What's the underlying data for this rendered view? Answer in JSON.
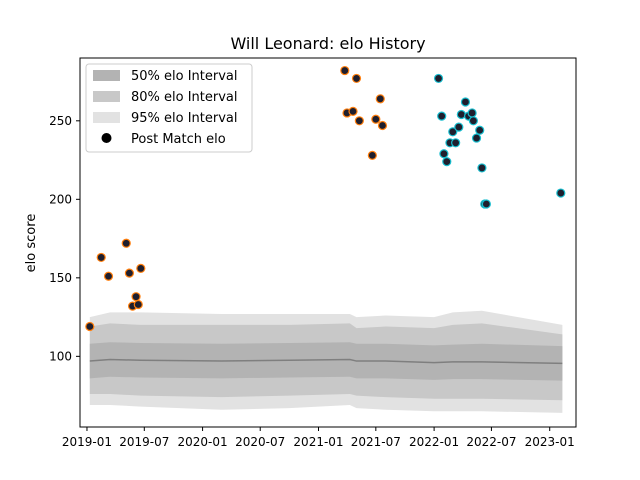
{
  "chart_data": {
    "type": "scatter",
    "title": "Will Leonard: elo History",
    "xlabel": "",
    "ylabel": "elo score",
    "xlim": [
      "2018-12-10",
      "2023-03-25"
    ],
    "ylim": [
      55,
      290
    ],
    "x_ticks": [
      "2019-01",
      "2019-07",
      "2020-01",
      "2020-07",
      "2021-01",
      "2021-07",
      "2022-01",
      "2022-07",
      "2023-01"
    ],
    "x_tick_labels": [
      "2019-01",
      "2019-07",
      "2020-01",
      "2020-07",
      "2021-01",
      "2021-07",
      "2022-01",
      "2022-07",
      "2023-01"
    ],
    "y_ticks": [
      100,
      150,
      200,
      250
    ],
    "y_tick_labels": [
      "100",
      "150",
      "200",
      "250"
    ],
    "legend": {
      "placement": "top-left",
      "entries": [
        {
          "label": "50% elo Interval",
          "color": "#b3b3b3"
        },
        {
          "label": "80% elo Interval",
          "color": "#c8c8c8"
        },
        {
          "label": "95% elo Interval",
          "color": "#e2e2e2"
        },
        {
          "label": "Post Match elo",
          "color": "#000000"
        }
      ]
    },
    "intervals": {
      "x": [
        "2019-01-10",
        "2019-03-15",
        "2019-06-20",
        "2020-03-01",
        "2020-10-01",
        "2021-04-10",
        "2021-05-01",
        "2021-08-01",
        "2022-01-01",
        "2022-03-01",
        "2022-06-01",
        "2023-02-10"
      ],
      "median": [
        97,
        98,
        97.5,
        97,
        97.5,
        98,
        97,
        97,
        96,
        96.5,
        96.5,
        95.5
      ],
      "p50": {
        "low": [
          86,
          87,
          86.5,
          86,
          86.5,
          87,
          86,
          86,
          85,
          85.5,
          85.5,
          84.5
        ],
        "high": [
          108,
          109,
          108.5,
          108,
          108.5,
          109,
          108,
          108,
          107,
          107.5,
          108,
          106.5
        ]
      },
      "p80": {
        "low": [
          76,
          76,
          75,
          74,
          75,
          76,
          75,
          74,
          73,
          73,
          73,
          72
        ],
        "high": [
          119,
          121,
          120,
          120,
          120,
          121,
          118,
          119,
          118,
          120,
          121,
          114
        ]
      },
      "p95": {
        "low": [
          69,
          69,
          68,
          66,
          67,
          69,
          67,
          66,
          65,
          65,
          65,
          64
        ],
        "high": [
          125,
          128,
          128,
          127,
          127,
          127,
          125,
          126,
          125,
          128,
          129,
          120
        ]
      }
    },
    "series": [
      {
        "name": "Post Match elo",
        "edge_color": "#ff7f0e",
        "x": [
          "2019-01-10",
          "2019-02-15",
          "2019-03-10",
          "2019-05-05",
          "2019-05-15",
          "2019-05-25",
          "2019-06-05",
          "2019-06-12",
          "2019-06-20",
          "2021-03-25",
          "2021-04-01",
          "2021-04-20",
          "2021-05-01",
          "2021-05-10",
          "2021-06-20",
          "2021-07-01",
          "2021-07-15",
          "2021-07-22"
        ],
        "y": [
          119,
          163,
          151,
          172,
          153,
          132,
          138,
          133,
          156,
          282,
          255,
          256,
          277,
          250,
          228,
          251,
          264,
          247
        ]
      },
      {
        "name": "Post Match elo",
        "edge_color": "#17becf",
        "x": [
          "2022-01-15",
          "2022-01-25",
          "2022-02-01",
          "2022-02-10",
          "2022-02-20",
          "2022-03-01",
          "2022-03-10",
          "2022-03-20",
          "2022-03-28",
          "2022-04-10",
          "2022-04-20",
          "2022-05-01",
          "2022-05-05",
          "2022-05-15",
          "2022-05-25",
          "2022-06-01",
          "2022-06-10",
          "2022-06-15",
          "2023-02-05"
        ],
        "y": [
          277,
          253,
          229,
          224,
          236,
          243,
          236,
          246,
          254,
          262,
          253,
          255,
          250,
          239,
          244,
          220,
          197,
          197,
          204
        ]
      }
    ]
  }
}
